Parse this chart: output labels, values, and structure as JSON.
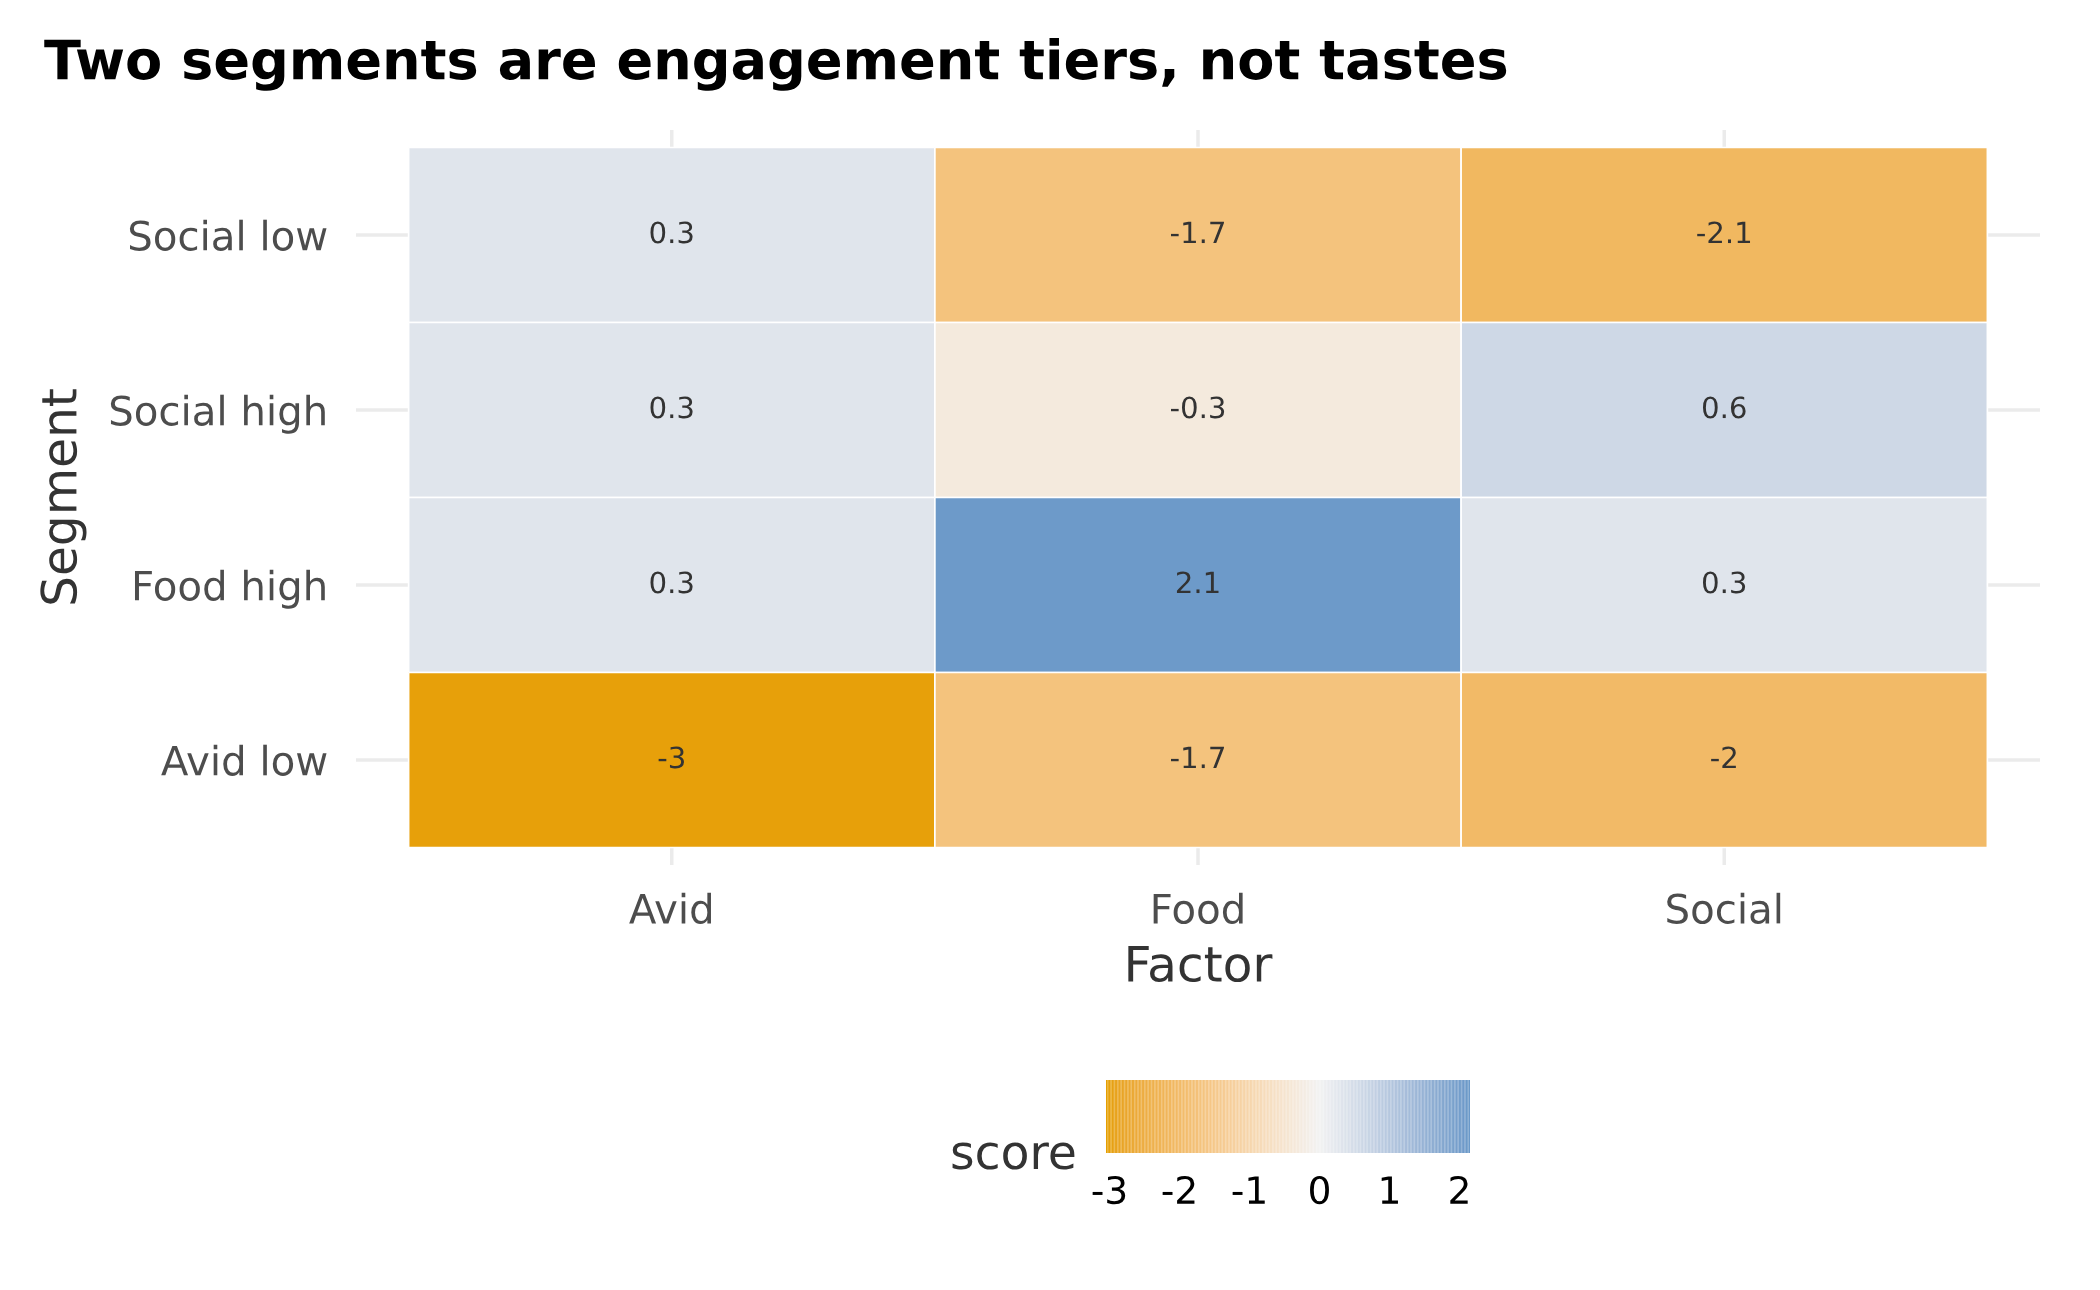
{
  "chart_data": {
    "type": "heatmap",
    "title": "Two segments are engagement tiers, not tastes",
    "xlabel": "Factor",
    "ylabel": "Segment",
    "clabel": "score",
    "categories": [
      "Avid",
      "Food",
      "Social"
    ],
    "y_categories": [
      "Social low",
      "Social high",
      "Food high",
      "Avid low"
    ],
    "cells": [
      [
        0.3,
        -1.7,
        -2.1
      ],
      [
        0.3,
        -0.3,
        0.6
      ],
      [
        0.3,
        2.1,
        0.3
      ],
      [
        -3,
        -1.7,
        -2
      ]
    ],
    "clim": [
      -3.05,
      2.15
    ],
    "cticks": [
      -3,
      -2,
      -1,
      0,
      1,
      2
    ],
    "colors": [
      "#e69f00",
      "#f2f2f2",
      "#6a98c8"
    ],
    "data_labels": true,
    "grid": true
  }
}
